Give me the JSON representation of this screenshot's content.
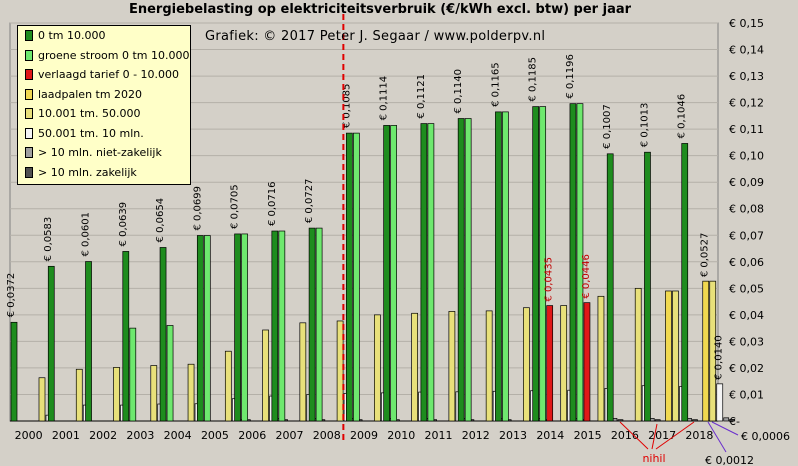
{
  "chart_data": {
    "type": "bar",
    "title": "Energiebelasting  op elektriciteitsverbruik  (€/kWh  excl. btw) per jaar",
    "credit": "Grafiek:  © 2017 Peter J. Segaar / www.polderpv.nl",
    "categories": [
      "2000",
      "2001",
      "2002",
      "2003",
      "2004",
      "2005",
      "2006",
      "2007",
      "2008",
      "2009",
      "2010",
      "2011",
      "2012",
      "2013",
      "2014",
      "2015",
      "2016",
      "2017",
      "2018"
    ],
    "ylim": [
      0,
      0.15
    ],
    "yticks": [
      "€-",
      "€ 0,01",
      "€ 0,02",
      "€ 0,03",
      "€ 0,04",
      "€ 0,05",
      "€ 0,06",
      "€ 0,07",
      "€ 0,08",
      "€ 0,09",
      "€ 0,10",
      "€ 0,11",
      "€ 0,12",
      "€ 0,13",
      "€ 0,14",
      "€ 0,15"
    ],
    "grid": true,
    "legend_position": "top-left",
    "series": [
      {
        "name": "0 tm 10.000",
        "color": "#1e8c1e",
        "values": [
          0.0372,
          0.0583,
          0.0601,
          0.0639,
          0.0654,
          0.0699,
          0.0705,
          0.0716,
          0.0727,
          0.1085,
          0.1114,
          0.1121,
          0.114,
          0.1165,
          0.1185,
          0.1196,
          0.1007,
          0.1013,
          0.1046
        ]
      },
      {
        "name": "groene stroom 0 tm 10.000",
        "color": "#6ee86e",
        "values": [
          0,
          0,
          0,
          0.035,
          0.036,
          0.0699,
          0.0705,
          0.0716,
          0.0727,
          0.1085,
          0.1114,
          0.1121,
          0.114,
          0.1165,
          0.1185,
          0.1196,
          0,
          0,
          0
        ]
      },
      {
        "name": "verlaagd tarief 0 - 10.000",
        "color": "#e01818",
        "values": [
          0,
          0,
          0,
          0,
          0,
          0,
          0,
          0,
          0,
          0,
          0,
          0,
          0,
          0,
          0.0435,
          0.0446,
          0,
          0,
          0
        ]
      },
      {
        "name": "laadpalen tm 2020",
        "color": "#f0d850",
        "values": [
          0,
          0,
          0,
          0,
          0,
          0,
          0,
          0,
          0,
          0,
          0,
          0,
          0,
          0,
          0,
          0,
          0,
          0.049,
          0.0527
        ]
      },
      {
        "name": "10.001 tm. 50.000",
        "color": "#e8e07a",
        "values": [
          0.0163,
          0.0195,
          0.0202,
          0.0209,
          0.0214,
          0.0263,
          0.0343,
          0.037,
          0.0377,
          0.04,
          0.0406,
          0.0413,
          0.0415,
          0.0427,
          0.0435,
          0.047,
          0.05,
          0.049,
          0.0527
        ]
      },
      {
        "name": "50.001 tm. 10 mln.",
        "color": "#f4f4f4",
        "values": [
          0.0022,
          0.006,
          0.006,
          0.0064,
          0.0065,
          0.0084,
          0.0094,
          0.01,
          0.0104,
          0.0106,
          0.0109,
          0.011,
          0.0112,
          0.0114,
          0.0116,
          0.0123,
          0.0133,
          0.013,
          0.014
        ]
      },
      {
        "name": "> 10 mln. niet-zakelijk",
        "color": "#a0a0a0",
        "values": [
          0,
          0,
          0,
          0,
          0,
          0.0006,
          0.0009,
          0.0009,
          0.001,
          0.001,
          0.001,
          0.001,
          0.001,
          0.001,
          0.001,
          0.001,
          0.001,
          0.001,
          0.0012
        ]
      },
      {
        "name": "> 10 mln. zakelijk",
        "color": "#505050",
        "values": [
          0,
          0,
          0,
          0,
          0,
          0.0005,
          0.0005,
          0.0005,
          0.0005,
          0.0005,
          0.0005,
          0.0005,
          0.0005,
          0.0005,
          0.0005,
          0.0005,
          0.0005,
          0.0005,
          0.0006
        ]
      }
    ],
    "labels_series0": [
      "€ 0,0372",
      "€ 0,0583",
      "€ 0,0601",
      "€ 0,0639",
      "€ 0,0654",
      "€ 0,0699",
      "€ 0,0705",
      "€ 0,0716",
      "€ 0,0727",
      "€ 0,1085",
      "€ 0,1114",
      "€ 0,1121",
      "€ 0,1140",
      "€ 0,1165",
      "€ 0,1185",
      "€ 0,1196",
      "€ 0,1007",
      "€ 0,1013",
      "€ 0,1046"
    ],
    "annotations": {
      "reduced_2014": "€ 0,0435",
      "reduced_2015": "€ 0,0446",
      "charging_2018": "€ 0,0527",
      "band_2018": "€ 0,0140",
      "large_zakelijk_2018": "€ 0,0006",
      "large_niet_2018": "€ 0,0012",
      "nihil": "nihil"
    },
    "divider_after": "2008",
    "colors": {
      "plot_bg": "#d4d0c8",
      "grid": "#b4b0a8",
      "divider": "#e00000",
      "nihil_arrows": "#e00000",
      "purple_arrows": "#6a2ecc"
    }
  }
}
